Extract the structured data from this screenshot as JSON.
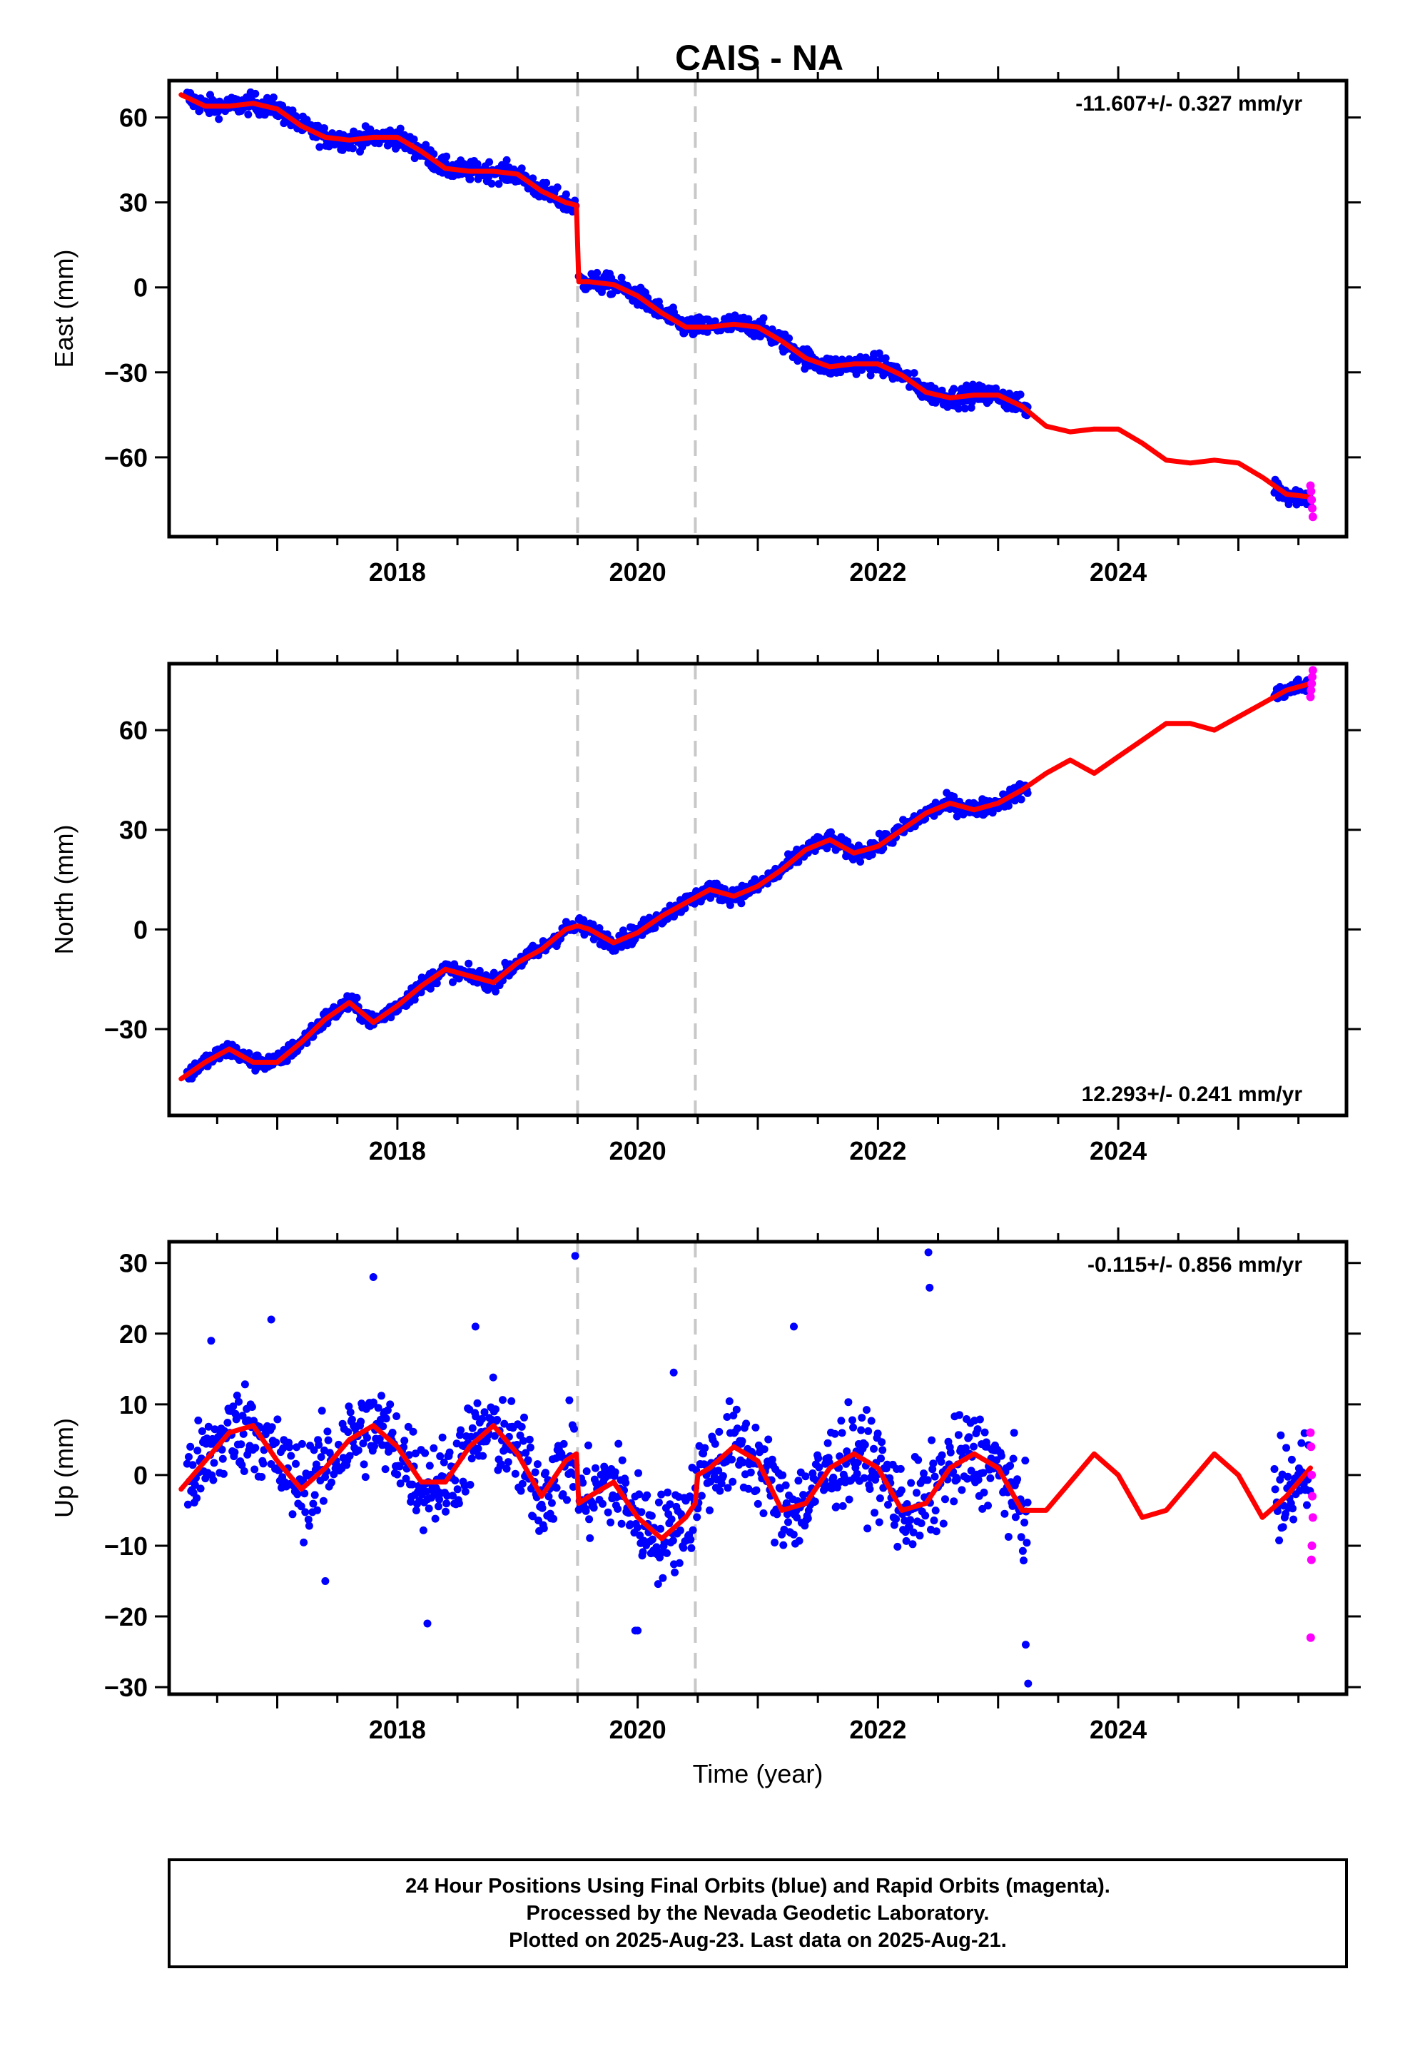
{
  "title": "CAIS - NA",
  "footer": {
    "lines": [
      "24 Hour Positions Using Final Orbits (blue) and Rapid Orbits (magenta).",
      "Processed by the Nevada Geodetic Laboratory.",
      "Plotted on 2025-Aug-23. Last data on 2025-Aug-21."
    ]
  },
  "colors": {
    "final_orbits": "#0000ff",
    "rapid_orbits": "#ff00ff",
    "model": "#ff0000",
    "event_lines": "#c8c8c8"
  },
  "chart_data": [
    {
      "type": "scatter",
      "title": "CAIS - NA",
      "xlabel": "",
      "ylabel": "East (mm)",
      "rate": "-11.607+/- 0.327 mm/yr",
      "rate_position": "top-right",
      "xlim": [
        2016.1,
        2025.9
      ],
      "ylim": [
        -88,
        73
      ],
      "x_ticks": [
        2018,
        2020,
        2022,
        2024
      ],
      "y_ticks": [
        60,
        30,
        0,
        -30,
        -60
      ],
      "y_tick_labels": [
        "60",
        "30",
        "0",
        "−30",
        "−60"
      ],
      "event_lines": [
        2019.5,
        2020.48
      ],
      "grid": false,
      "model": {
        "x": [
          2016.2,
          2016.4,
          2016.6,
          2016.8,
          2017.0,
          2017.2,
          2017.4,
          2017.6,
          2017.8,
          2018.0,
          2018.2,
          2018.4,
          2018.6,
          2018.8,
          2019.0,
          2019.2,
          2019.4,
          2019.49,
          2019.51,
          2019.6,
          2019.8,
          2020.0,
          2020.2,
          2020.4,
          2020.6,
          2020.8,
          2021.0,
          2021.2,
          2021.4,
          2021.6,
          2021.8,
          2022.0,
          2022.2,
          2022.4,
          2022.6,
          2022.8,
          2023.0,
          2023.2,
          2023.4,
          2023.6,
          2023.8,
          2024.0,
          2024.2,
          2024.4,
          2024.6,
          2024.8,
          2025.0,
          2025.2,
          2025.4,
          2025.6
        ],
        "y": [
          68,
          64,
          64,
          65,
          63,
          57,
          53,
          52,
          53,
          53,
          48,
          42,
          41,
          41,
          40,
          34,
          30,
          29,
          2,
          2,
          1,
          -3,
          -9,
          -14,
          -14,
          -13,
          -14,
          -19,
          -25,
          -28,
          -27,
          -27,
          -31,
          -37,
          -39,
          -38,
          -38,
          -42,
          -49,
          -51,
          -50,
          -50,
          -55,
          -61,
          -62,
          -61,
          -62,
          -67,
          -73,
          -74
        ]
      },
      "final_orbits": {
        "segments": [
          [
            2016.25,
            2019.49
          ],
          [
            2019.51,
            2023.25
          ],
          [
            2025.3,
            2025.6
          ]
        ],
        "scatter_mm": 2.5
      },
      "rapid_orbits": {
        "x": [
          2025.6,
          2025.605,
          2025.61,
          2025.615,
          2025.62
        ],
        "y": [
          -70,
          -72,
          -75,
          -78,
          -81
        ]
      }
    },
    {
      "type": "scatter",
      "title": "",
      "xlabel": "",
      "ylabel": "North (mm)",
      "rate": "12.293+/- 0.241 mm/yr",
      "rate_position": "bottom-right",
      "xlim": [
        2016.1,
        2025.9
      ],
      "ylim": [
        -56,
        80
      ],
      "x_ticks": [
        2018,
        2020,
        2022,
        2024
      ],
      "y_ticks": [
        60,
        30,
        0,
        -30
      ],
      "y_tick_labels": [
        "60",
        "30",
        "0",
        "−30"
      ],
      "event_lines": [
        2019.5,
        2020.48
      ],
      "grid": false,
      "model": {
        "x": [
          2016.2,
          2016.4,
          2016.6,
          2016.8,
          2017.0,
          2017.2,
          2017.4,
          2017.6,
          2017.8,
          2018.0,
          2018.2,
          2018.4,
          2018.6,
          2018.8,
          2019.0,
          2019.2,
          2019.4,
          2019.49,
          2019.51,
          2019.6,
          2019.8,
          2020.0,
          2020.2,
          2020.4,
          2020.6,
          2020.8,
          2021.0,
          2021.2,
          2021.4,
          2021.6,
          2021.8,
          2022.0,
          2022.2,
          2022.4,
          2022.6,
          2022.8,
          2023.0,
          2023.2,
          2023.4,
          2023.6,
          2023.8,
          2024.0,
          2024.2,
          2024.4,
          2024.6,
          2024.8,
          2025.0,
          2025.2,
          2025.4,
          2025.6
        ],
        "y": [
          -45,
          -40,
          -36,
          -40,
          -40,
          -34,
          -27,
          -22,
          -28,
          -23,
          -17,
          -12,
          -14,
          -16,
          -10,
          -6,
          0,
          1,
          1,
          0,
          -4,
          -1,
          4,
          8,
          12,
          10,
          13,
          18,
          24,
          27,
          23,
          25,
          30,
          35,
          38,
          36,
          38,
          42,
          47,
          51,
          47,
          52,
          57,
          62,
          62,
          60,
          64,
          68,
          72,
          74
        ]
      },
      "final_orbits": {
        "segments": [
          [
            2016.25,
            2019.49
          ],
          [
            2019.51,
            2023.25
          ],
          [
            2025.3,
            2025.6
          ]
        ],
        "scatter_mm": 1.8
      },
      "rapid_orbits": {
        "x": [
          2025.6,
          2025.605,
          2025.61,
          2025.615,
          2025.62
        ],
        "y": [
          70,
          72,
          74,
          76,
          78
        ]
      }
    },
    {
      "type": "scatter",
      "title": "",
      "xlabel": "Time (year)",
      "ylabel": "Up (mm)",
      "rate": "-0.115+/- 0.856 mm/yr",
      "rate_position": "top-right",
      "xlim": [
        2016.1,
        2025.9
      ],
      "ylim": [
        -31,
        33
      ],
      "x_ticks": [
        2018,
        2020,
        2022,
        2024
      ],
      "y_ticks": [
        30,
        20,
        10,
        0,
        -10,
        -20,
        -30
      ],
      "y_tick_labels": [
        "30",
        "20",
        "10",
        "0",
        "−10",
        "−20",
        "−30"
      ],
      "event_lines": [
        2019.5,
        2020.48
      ],
      "grid": false,
      "model": {
        "x": [
          2016.2,
          2016.4,
          2016.6,
          2016.8,
          2017.0,
          2017.2,
          2017.4,
          2017.6,
          2017.8,
          2018.0,
          2018.2,
          2018.4,
          2018.6,
          2018.8,
          2019.0,
          2019.2,
          2019.4,
          2019.49,
          2019.51,
          2019.6,
          2019.8,
          2020.0,
          2020.2,
          2020.4,
          2020.48,
          2020.5,
          2020.6,
          2020.8,
          2021.0,
          2021.2,
          2021.4,
          2021.6,
          2021.8,
          2022.0,
          2022.2,
          2022.4,
          2022.6,
          2022.8,
          2023.0,
          2023.2,
          2023.4,
          2023.6,
          2023.8,
          2024.0,
          2024.2,
          2024.4,
          2024.6,
          2024.8,
          2025.0,
          2025.2,
          2025.4,
          2025.6
        ],
        "y": [
          -2,
          2,
          6,
          7,
          2,
          -2,
          1,
          5,
          7,
          4,
          -1,
          -1,
          4,
          7,
          3,
          -3,
          2,
          3,
          -4,
          -3,
          -1,
          -6,
          -9,
          -6,
          -4,
          0,
          1,
          4,
          2,
          -5,
          -4,
          1,
          3,
          1,
          -5,
          -4,
          1,
          3,
          1,
          -5,
          -5,
          -1,
          3,
          0,
          -6,
          -5,
          -1,
          3,
          0,
          -6,
          -3,
          1
        ]
      },
      "final_orbits": {
        "segments": [
          [
            2016.25,
            2019.49
          ],
          [
            2019.51,
            2023.25
          ],
          [
            2025.3,
            2025.6
          ]
        ],
        "scatter_mm": 4.5
      },
      "outliers": {
        "x": [
          2016.45,
          2016.95,
          2017.8,
          2018.65,
          2019.48,
          2019.98,
          2020.3,
          2021.3,
          2022.42,
          2022.43,
          2023.23,
          2023.25,
          2017.4,
          2018.25,
          2020.0
        ],
        "y": [
          19,
          22,
          28,
          21,
          31,
          -22,
          14.5,
          21,
          31.5,
          26.5,
          -24,
          -29.5,
          -15,
          -21,
          -22
        ]
      },
      "rapid_orbits": {
        "x": [
          2025.6,
          2025.605,
          2025.61,
          2025.615,
          2025.62,
          2025.612,
          2025.608,
          2025.602
        ],
        "y": [
          6,
          4,
          0,
          -3,
          -6,
          -10,
          -12,
          -23
        ]
      }
    }
  ]
}
